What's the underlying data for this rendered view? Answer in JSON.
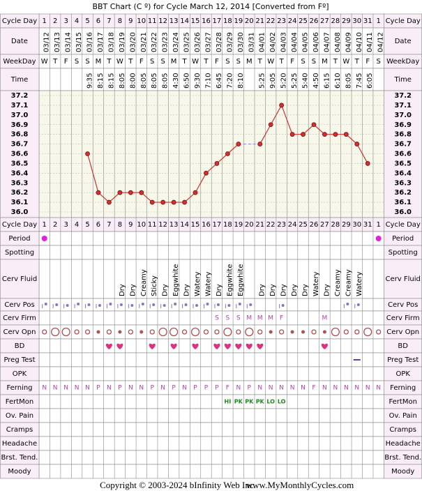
{
  "title": "BBT Chart (C º) for Cycle March 12, 2014  [Converted from Fº]",
  "labels": {
    "cycle_day": "Cycle Day",
    "date": "Date",
    "weekday": "WeekDay",
    "time": "Time"
  },
  "cycle_days": [
    1,
    2,
    3,
    4,
    5,
    6,
    7,
    8,
    9,
    10,
    11,
    12,
    13,
    14,
    15,
    16,
    17,
    18,
    19,
    20,
    21,
    22,
    23,
    24,
    25,
    26,
    27,
    28,
    29,
    30,
    31,
    1
  ],
  "weekdays": [
    "W",
    "T",
    "F",
    "S",
    "S",
    "M",
    "T",
    "W",
    "T",
    "F",
    "S",
    "S",
    "M",
    "T",
    "W",
    "T",
    "F",
    "S",
    "S",
    "M",
    "T",
    "W",
    "T",
    "F",
    "S",
    "S",
    "M",
    "T",
    "W",
    "T",
    "F",
    "S"
  ],
  "times": [
    null,
    null,
    null,
    null,
    "9:35",
    "8:15",
    "8:15",
    "8:05",
    "8:00",
    "8:05",
    "8:05",
    "8:05",
    "4:30",
    "6:50",
    "9:30",
    "7:10",
    "6:45",
    "7:20",
    "8:10",
    null,
    "5:25",
    "9:05",
    "5:20",
    "5:25",
    "5:40",
    "4:50",
    "6:15",
    "6:10",
    "8:05",
    "7:45",
    "6:05",
    null
  ],
  "chart_data": {
    "type": "line",
    "categories": [
      "03/12",
      "03/13",
      "03/14",
      "03/15",
      "03/16",
      "03/17",
      "03/18",
      "03/19",
      "03/20",
      "03/21",
      "03/22",
      "03/23",
      "03/24",
      "03/25",
      "03/26",
      "03/27",
      "03/28",
      "03/29",
      "03/30",
      "03/31",
      "04/01",
      "04/02",
      "04/03",
      "04/04",
      "04/05",
      "04/06",
      "04/07",
      "04/08",
      "04/09",
      "04/10",
      "04/11",
      "04/12"
    ],
    "values": [
      null,
      null,
      null,
      null,
      36.6,
      36.2,
      36.1,
      36.2,
      36.2,
      36.2,
      36.1,
      36.1,
      36.1,
      36.1,
      36.2,
      36.4,
      36.5,
      36.6,
      36.7,
      null,
      36.7,
      36.9,
      37.1,
      36.8,
      36.8,
      36.9,
      36.8,
      36.8,
      36.8,
      36.7,
      36.5,
      null
    ],
    "color": "#d03030",
    "ylim": [
      36.0,
      37.2
    ],
    "yticks": [
      {
        "value": 36.0,
        "label": "36.0"
      },
      36.1,
      36.2,
      36.3,
      36.4,
      36.5,
      36.6,
      36.7,
      36.8,
      36.9,
      {
        "value": 37.0,
        "label": "37.0"
      },
      37.1,
      37.2
    ],
    "grid": true
  },
  "observations": [
    {
      "label": "Period"
    },
    {
      "label": "Spotting"
    },
    {
      "label": "Cerv Fluid",
      "cells": [
        null,
        null,
        null,
        null,
        null,
        null,
        null,
        "Dry",
        "Dry",
        "Creamy",
        "Sticky",
        "Dry",
        "Eggwhite",
        "Dry",
        "Watery",
        "Watery",
        "Dry",
        "Eggwhite",
        "Eggwhite",
        null,
        "Dry",
        "Dry",
        "Dry",
        "Dry",
        "Dry",
        "Watery",
        "Dry",
        "Creamy",
        "Creamy",
        "Watery",
        null,
        null
      ]
    },
    {
      "label": "Cerv Pos"
    },
    {
      "label": "Cerv Firm",
      "cells": [
        null,
        null,
        null,
        null,
        null,
        null,
        null,
        null,
        null,
        null,
        null,
        null,
        null,
        null,
        null,
        null,
        "S",
        "S",
        "S",
        "M",
        "M",
        "M",
        "F",
        null,
        null,
        null,
        "M",
        null,
        null,
        null,
        null,
        null
      ]
    },
    {
      "label": "Cerv Opn"
    },
    {
      "label": "BD"
    },
    {
      "label": "Preg Test"
    },
    {
      "label": "OPK"
    },
    {
      "label": "Ferning",
      "cells": [
        "N",
        "N",
        "N",
        "N",
        "N",
        "P",
        "N",
        "P",
        "N",
        "N",
        "P",
        "N",
        "P",
        "N",
        "P",
        "P",
        "P",
        "F",
        "N",
        "P",
        "N",
        "N",
        "N",
        "N",
        "N",
        "F",
        "N",
        "N",
        "N",
        "N",
        "N",
        "N"
      ]
    },
    {
      "label": "FertMon",
      "cells": [
        null,
        null,
        null,
        null,
        null,
        null,
        null,
        null,
        null,
        null,
        null,
        null,
        null,
        null,
        null,
        null,
        null,
        "HI",
        "PK",
        "PK",
        "PK",
        "LO",
        "LO",
        null,
        null,
        null,
        null,
        null,
        null,
        null,
        null,
        null
      ]
    },
    {
      "label": "Ov. Pain"
    },
    {
      "label": "Cramps"
    },
    {
      "label": "Headache"
    },
    {
      "label": "Brst. Tend."
    },
    {
      "label": "Moody"
    }
  ],
  "footer": {
    "copyright": "Copyright © 2003-2024 bInfinity Web Inc.",
    "website": "www.MyMonthlyCycles.com"
  }
}
